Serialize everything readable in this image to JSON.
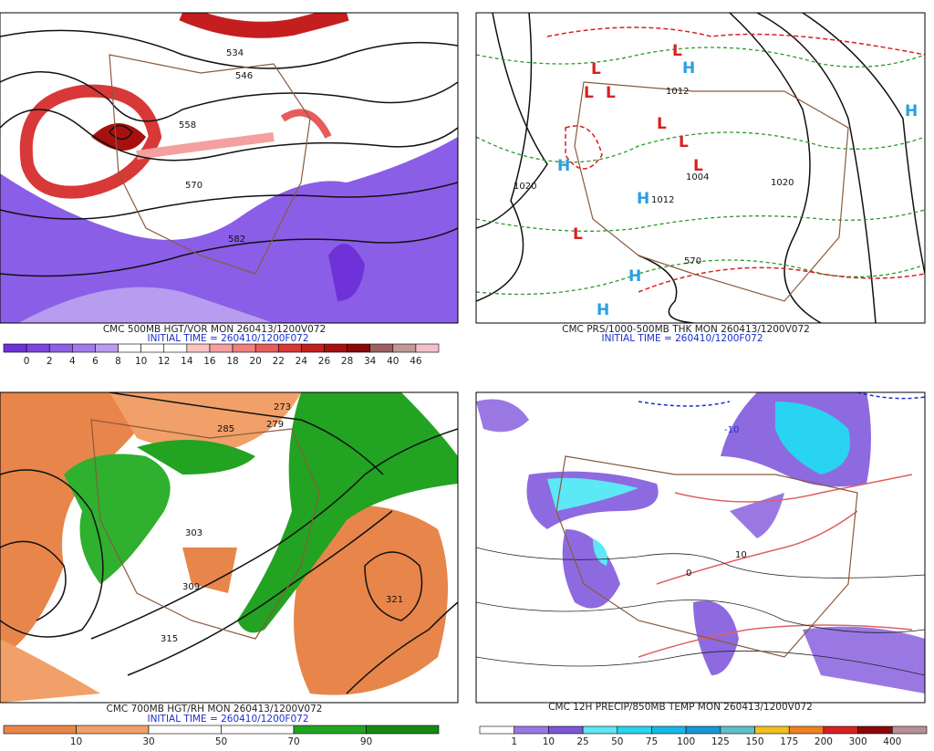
{
  "panels": [
    {
      "caption": "CMC 500MB HGT/VOR MON 260413/1200V072",
      "initial_time": "INITIAL TIME = 260410/1200F072",
      "map_labels": [
        534,
        546,
        558,
        570,
        582
      ],
      "colorbar": {
        "labels": [
          0,
          2,
          4,
          6,
          8,
          10,
          12,
          14,
          16,
          18,
          20,
          22,
          24,
          26,
          28,
          34,
          40,
          46
        ],
        "colors": [
          "#6f32d8",
          "#7e46e0",
          "#8e5ee6",
          "#a07aea",
          "#b89cf0",
          "#ffffff",
          "#ffffff",
          "#ffffff",
          "#f9c4c4",
          "#f4a0a0",
          "#ef8080",
          "#e65c5c",
          "#d93838",
          "#c41e1e",
          "#a81010",
          "#8a0808",
          "#9c6060",
          "#c09898",
          "#f2c0cc"
        ]
      }
    },
    {
      "caption": "CMC PRS/1000-500MB THK MON 260413/1200V072",
      "initial_time": "INITIAL TIME = 260410/1200F072",
      "map_labels": [
        1012,
        1004,
        1020,
        1020,
        1012,
        570
      ],
      "high": "H",
      "low": "L"
    },
    {
      "caption": "CMC 700MB HGT/RH MON 260413/1200V072",
      "initial_time": "INITIAL TIME = 260410/1200F072",
      "map_labels": [
        285,
        279,
        273,
        303,
        309,
        315,
        321
      ],
      "colorbar": {
        "labels": [
          10,
          30,
          50,
          70,
          90
        ],
        "colors": [
          "#e8854a",
          "#f0a068",
          "#ffffff",
          "#ffffff",
          "#22a322",
          "#138a13"
        ]
      }
    },
    {
      "caption": "CMC 12H PRECIP/850MB TEMP MON 260413/1200V072",
      "map_labels": [
        -10,
        0,
        10
      ],
      "colorbar": {
        "labels": [
          1,
          10,
          25,
          50,
          75,
          100,
          125,
          150,
          175,
          200,
          300,
          400
        ],
        "colors": [
          "#ffffff",
          "#9a78e4",
          "#7d55d6",
          "#5ce8f4",
          "#28d4f0",
          "#16b8e8",
          "#1898d8",
          "#60c0c8",
          "#f0c020",
          "#f08020",
          "#d82020",
          "#8a0808",
          "#b89098"
        ]
      }
    }
  ]
}
